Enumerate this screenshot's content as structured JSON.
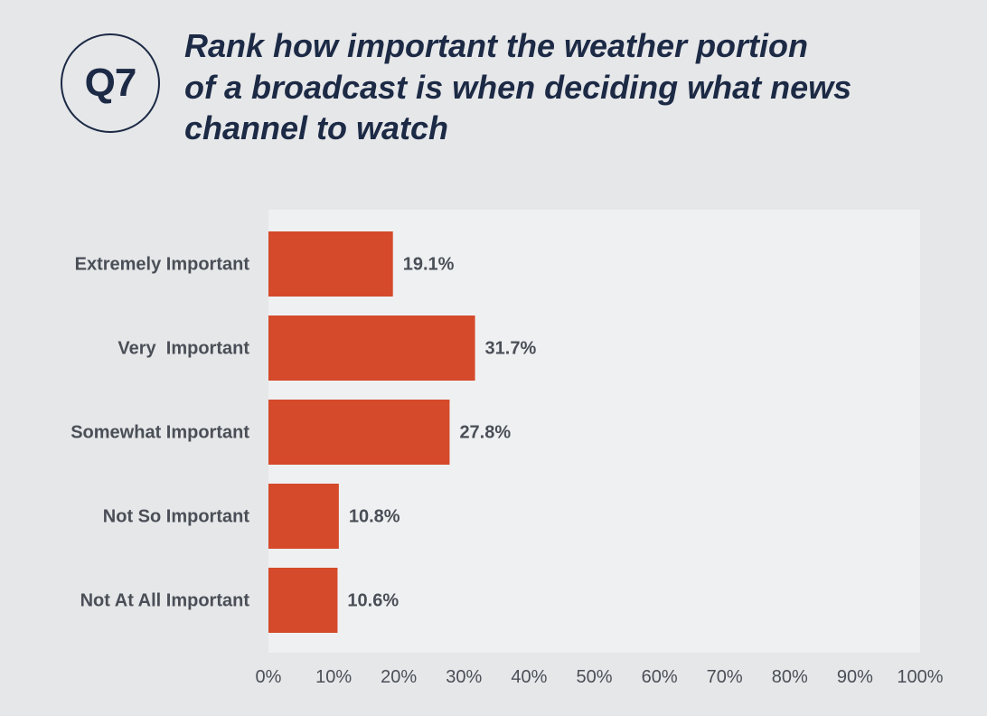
{
  "badge": {
    "label": "Q7"
  },
  "question": {
    "lines": [
      "Rank how important the weather portion",
      "of a broadcast is when deciding what news",
      "channel to watch"
    ]
  },
  "colors": {
    "bar": "#d54a2a",
    "plot_bg": "#eff0f2",
    "page_bg": "#e6e7e9",
    "text": "#4a4f57",
    "title": "#1c2a45"
  },
  "chart_data": {
    "type": "bar",
    "orientation": "horizontal",
    "title": "Rank how important the weather portion of a broadcast is when deciding what news channel to watch",
    "categories": [
      "Extremely Important",
      "Very  Important",
      "Somewhat Important",
      "Not So Important",
      "Not At All Important"
    ],
    "values": [
      19.1,
      31.7,
      27.8,
      10.8,
      10.6
    ],
    "value_labels": [
      "19.1%",
      "31.7%",
      "27.8%",
      "10.8%",
      "10.6%"
    ],
    "xlim": [
      0,
      100
    ],
    "xticks": [
      0,
      10,
      20,
      30,
      40,
      50,
      60,
      70,
      80,
      90,
      100
    ],
    "xtick_labels": [
      "0%",
      "10%",
      "20%",
      "30%",
      "40%",
      "50%",
      "60%",
      "70%",
      "80%",
      "90%",
      "100%"
    ],
    "xlabel": "",
    "ylabel": "",
    "grid": false,
    "legend": "none"
  }
}
